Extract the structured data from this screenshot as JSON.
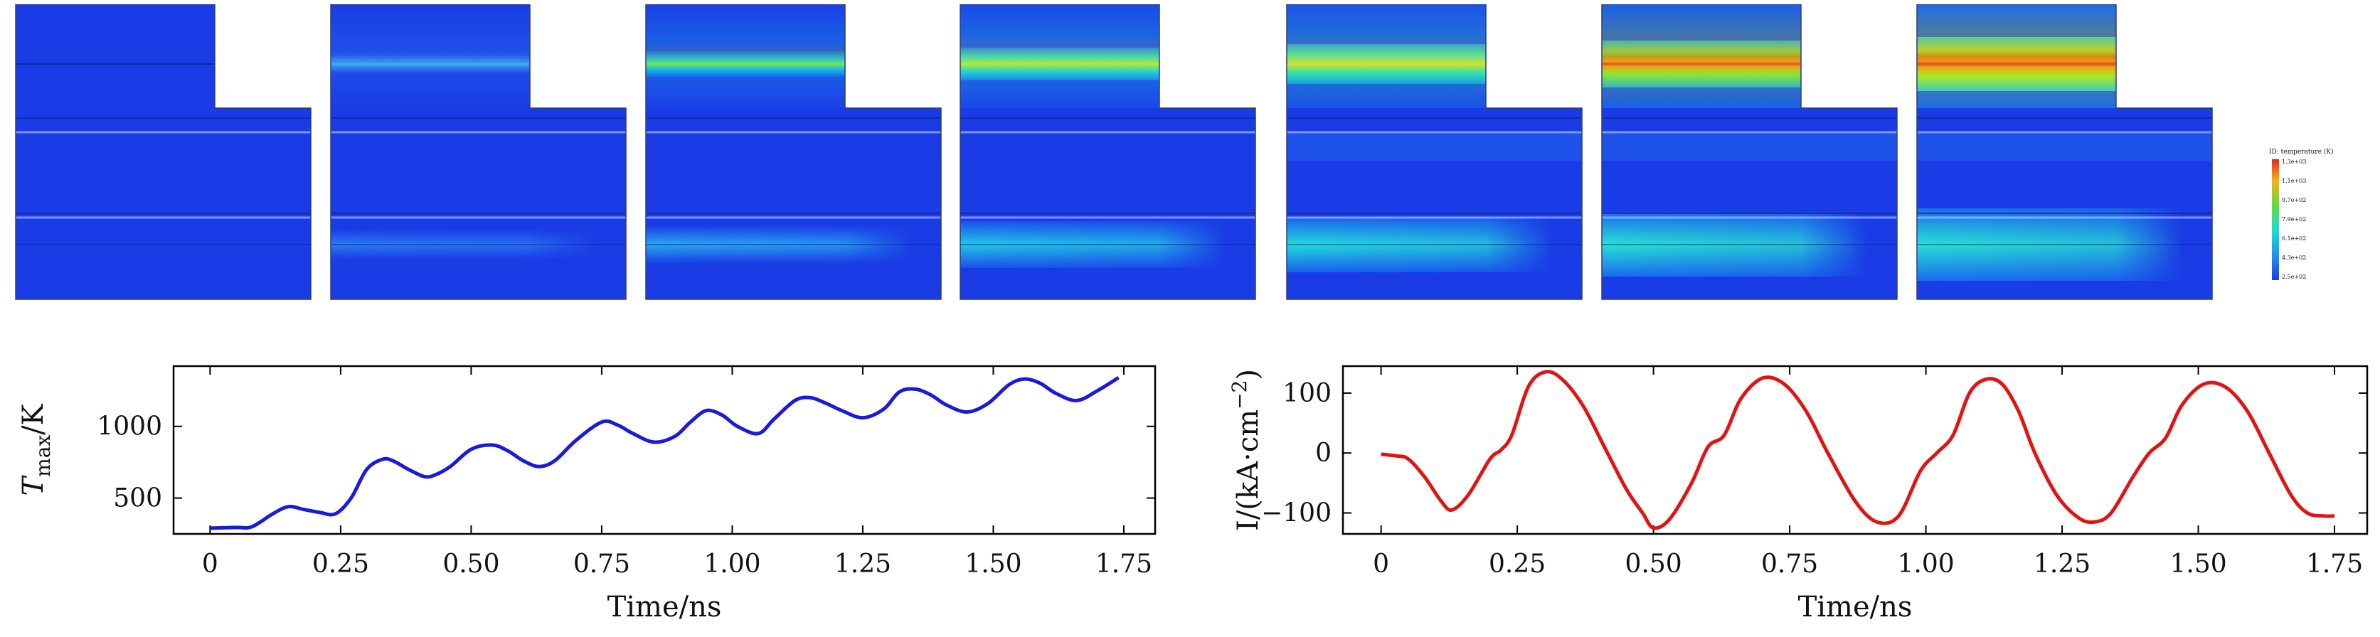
{
  "figure": {
    "description": "Temperature field snapshots and time traces",
    "panels_count": 7
  },
  "colorbar": {
    "title": "ID: temperature (K)",
    "labels": [
      "1.3e+03",
      "1.1e+03",
      "9.7e+02",
      "7.9e+02",
      "6.1e+02",
      "4.3e+02",
      "2.5e+02"
    ]
  },
  "chart_data": [
    {
      "type": "line",
      "name": "temperature",
      "xlabel": "Time/ns",
      "ylabel_main": "T",
      "ylabel_sub": "max",
      "ylabel_unit": "/K",
      "xlim": [
        -0.07,
        1.81
      ],
      "ylim": [
        250,
        1420
      ],
      "xticks": [
        0,
        0.25,
        0.5,
        0.75,
        1.0,
        1.25,
        1.5,
        1.75
      ],
      "xtick_labels": [
        "0",
        "0.25",
        "0.50",
        "0.75",
        "1.00",
        "1.25",
        "1.50",
        "1.75"
      ],
      "yticks": [
        500,
        1000
      ],
      "ytick_labels": [
        "500",
        "1000"
      ],
      "color": "#1a1adc",
      "x": [
        0,
        0.05,
        0.08,
        0.12,
        0.15,
        0.18,
        0.21,
        0.24,
        0.27,
        0.3,
        0.33,
        0.35,
        0.38,
        0.41,
        0.43,
        0.46,
        0.5,
        0.54,
        0.57,
        0.6,
        0.63,
        0.66,
        0.7,
        0.75,
        0.78,
        0.81,
        0.85,
        0.89,
        0.92,
        0.95,
        0.98,
        1.01,
        1.05,
        1.08,
        1.12,
        1.15,
        1.18,
        1.21,
        1.25,
        1.29,
        1.32,
        1.35,
        1.38,
        1.41,
        1.45,
        1.49,
        1.53,
        1.56,
        1.59,
        1.62,
        1.66,
        1.7,
        1.74
      ],
      "y": [
        290,
        295,
        300,
        390,
        440,
        420,
        400,
        390,
        500,
        700,
        770,
        760,
        700,
        650,
        660,
        720,
        840,
        870,
        830,
        760,
        720,
        760,
        900,
        1030,
        1010,
        950,
        890,
        930,
        1030,
        1110,
        1080,
        1000,
        950,
        1050,
        1180,
        1200,
        1160,
        1110,
        1060,
        1120,
        1240,
        1260,
        1220,
        1150,
        1100,
        1160,
        1290,
        1330,
        1300,
        1230,
        1180,
        1250,
        1340
      ]
    },
    {
      "type": "line",
      "name": "current",
      "xlabel": "Time/ns",
      "ylabel": "I/(kA·cm",
      "ylabel_exp": "−2",
      "ylabel_end": ")",
      "xlim": [
        -0.07,
        1.81
      ],
      "ylim": [
        -135,
        145
      ],
      "xticks": [
        0,
        0.25,
        0.5,
        0.75,
        1.0,
        1.25,
        1.5,
        1.75
      ],
      "xtick_labels": [
        "0",
        "0.25",
        "0.50",
        "0.75",
        "1.00",
        "1.25",
        "1.50",
        "1.75"
      ],
      "yticks": [
        100,
        0,
        -100
      ],
      "ytick_labels": [
        "100",
        "0",
        "−100"
      ],
      "color": "#e01414",
      "x": [
        0,
        0.03,
        0.05,
        0.08,
        0.11,
        0.13,
        0.16,
        0.2,
        0.22,
        0.24,
        0.27,
        0.3,
        0.33,
        0.37,
        0.41,
        0.45,
        0.48,
        0.5,
        0.53,
        0.57,
        0.6,
        0.63,
        0.66,
        0.7,
        0.74,
        0.78,
        0.82,
        0.87,
        0.91,
        0.95,
        0.99,
        1.02,
        1.05,
        1.08,
        1.11,
        1.14,
        1.17,
        1.2,
        1.24,
        1.28,
        1.31,
        1.34,
        1.38,
        1.41,
        1.44,
        1.47,
        1.51,
        1.55,
        1.59,
        1.63,
        1.67,
        1.7,
        1.73,
        1.75
      ],
      "y": [
        -2,
        -5,
        -10,
        -40,
        -80,
        -95,
        -70,
        -10,
        5,
        30,
        110,
        135,
        125,
        80,
        10,
        -60,
        -100,
        -125,
        -110,
        -50,
        10,
        30,
        90,
        125,
        115,
        70,
        0,
        -80,
        -115,
        -105,
        -30,
        0,
        30,
        100,
        123,
        115,
        70,
        0,
        -70,
        -108,
        -115,
        -100,
        -40,
        0,
        25,
        80,
        115,
        110,
        70,
        0,
        -70,
        -100,
        -105,
        -105
      ]
    }
  ]
}
